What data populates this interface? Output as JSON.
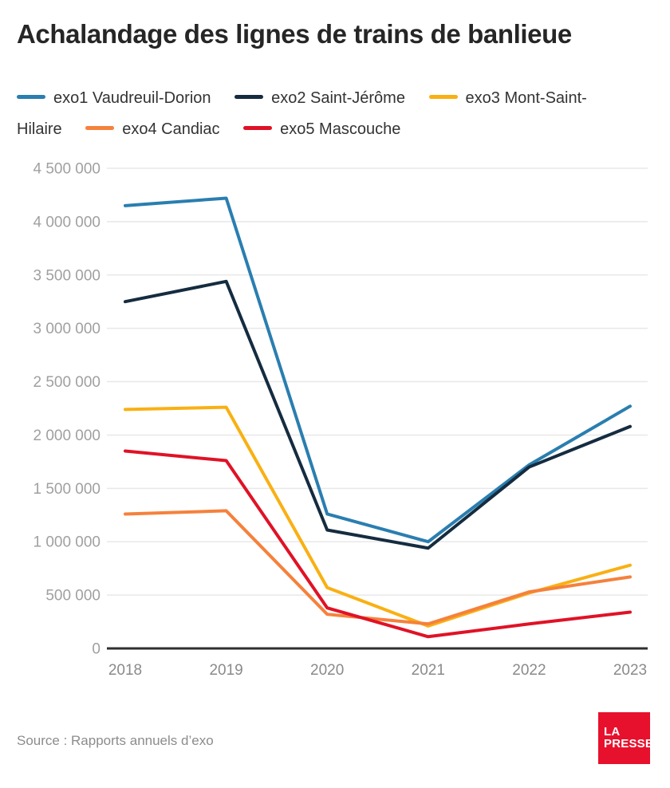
{
  "title": "Achalandage des lignes de trains de banlieue",
  "source": "Source : Rapports annuels d’exo",
  "logo": {
    "line1": "LA",
    "line2": "PRESSE",
    "bg": "#e8112d"
  },
  "chart_data": {
    "type": "line",
    "x": [
      "2018",
      "2019",
      "2020",
      "2021",
      "2022",
      "2023"
    ],
    "series": [
      {
        "name": "exo1 Vaudreuil-Dorion",
        "color": "#2a7eb0",
        "values": [
          4150000,
          4220000,
          1260000,
          1000000,
          1720000,
          2270000
        ]
      },
      {
        "name": "exo2 Saint-Jérôme",
        "color": "#152c40",
        "values": [
          3250000,
          3440000,
          1110000,
          940000,
          1700000,
          2080000
        ]
      },
      {
        "name": "exo3 Mont-Saint-Hilaire",
        "color": "#f9b013",
        "values": [
          2240000,
          2260000,
          570000,
          210000,
          520000,
          780000
        ]
      },
      {
        "name": "exo4 Candiac",
        "color": "#f5813c",
        "values": [
          1260000,
          1290000,
          320000,
          230000,
          530000,
          670000
        ]
      },
      {
        "name": "exo5 Mascouche",
        "color": "#e01226",
        "values": [
          1850000,
          1760000,
          380000,
          110000,
          230000,
          340000
        ]
      }
    ],
    "ylim": [
      0,
      4500000
    ],
    "ytick_step": 500000,
    "grid": true,
    "gridline_color": "#e8e8e8",
    "axis_color": "#2f2f2f",
    "legend_position": "top"
  }
}
